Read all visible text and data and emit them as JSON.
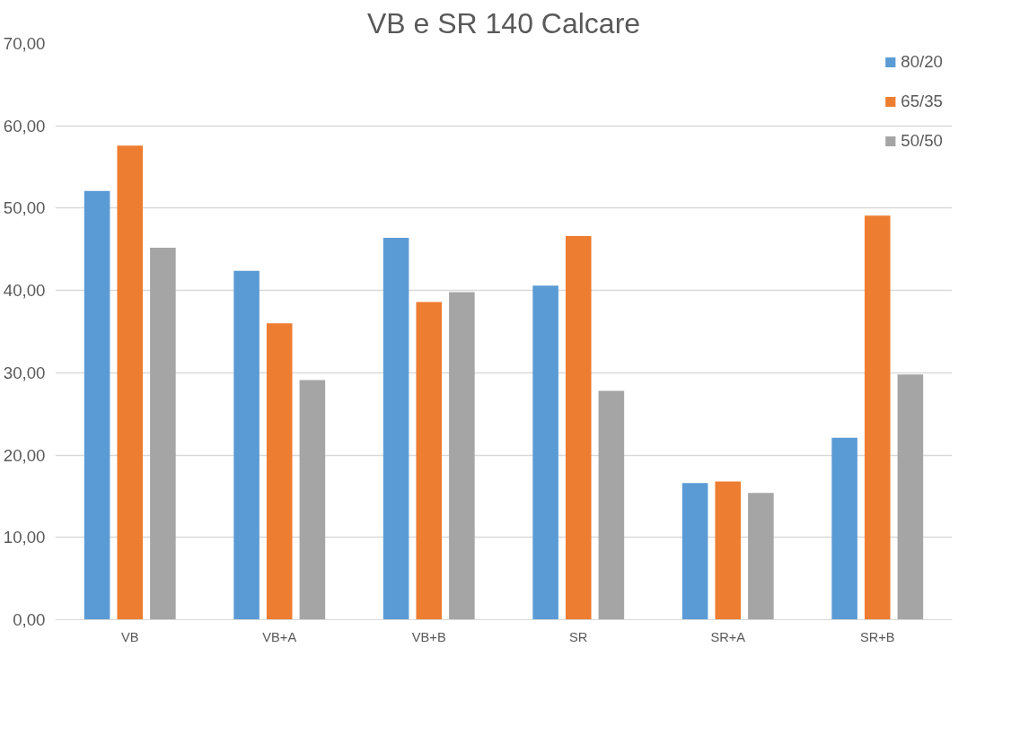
{
  "chart_data": {
    "type": "bar",
    "title": "VB e SR 140 Calcare",
    "categories": [
      "VB",
      "VB+A",
      "VB+B",
      "SR",
      "SR+A",
      "SR+B"
    ],
    "series": [
      {
        "name": "80/20",
        "color": "#5b9bd5",
        "values": [
          52.1,
          42.4,
          46.4,
          40.6,
          16.6,
          22.1
        ]
      },
      {
        "name": "65/35",
        "color": "#ed7d31",
        "values": [
          57.6,
          36.0,
          38.6,
          46.6,
          16.8,
          49.1
        ]
      },
      {
        "name": "50/50",
        "color": "#a5a5a5",
        "values": [
          45.2,
          29.1,
          39.8,
          27.8,
          15.4,
          29.8
        ]
      }
    ],
    "ylim": [
      0,
      70
    ],
    "yticks": [
      {
        "value": 0,
        "label": "0,00"
      },
      {
        "value": 10,
        "label": "10,00"
      },
      {
        "value": 20,
        "label": "20,00"
      },
      {
        "value": 30,
        "label": "30,00"
      },
      {
        "value": 40,
        "label": "40,00"
      },
      {
        "value": 50,
        "label": "50,00"
      },
      {
        "value": 60,
        "label": "60,00"
      },
      {
        "value": 70,
        "label": "70,00"
      }
    ],
    "grid": "y",
    "legend": "top right"
  }
}
